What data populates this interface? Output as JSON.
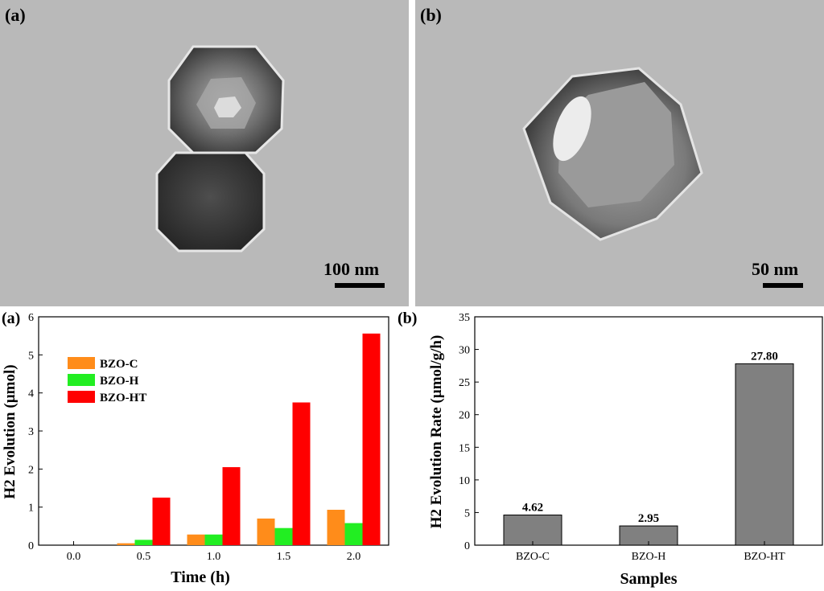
{
  "tem_images": [
    {
      "panel_label": "(a)",
      "scale_label": "100 nm"
    },
    {
      "panel_label": "(b)",
      "scale_label": "50 nm"
    }
  ],
  "colors": {
    "bzo_c": "#ff8c1a",
    "bzo_h": "#22ee22",
    "bzo_ht": "#ff0000",
    "rate_bar": "#808080",
    "tem_background": "#b8b8b8"
  },
  "chart_data": [
    {
      "type": "bar",
      "panel_label": "(a)",
      "xlabel": "Time (h)",
      "ylabel": "H2 Evolution (µmol)",
      "categories": [
        "0.0",
        "0.5",
        "1.0",
        "1.5",
        "2.0"
      ],
      "yticks": [
        "0",
        "1",
        "2",
        "3",
        "4",
        "5",
        "6"
      ],
      "ylim": [
        0,
        6
      ],
      "legend_position": "upper-left",
      "series": [
        {
          "name": "BZO-C",
          "values": [
            0,
            0.05,
            0.28,
            0.7,
            0.93
          ]
        },
        {
          "name": "BZO-H",
          "values": [
            0,
            0.14,
            0.28,
            0.45,
            0.58
          ]
        },
        {
          "name": "BZO-HT",
          "values": [
            0,
            1.25,
            2.05,
            3.75,
            5.56
          ]
        }
      ]
    },
    {
      "type": "bar",
      "panel_label": "(b)",
      "xlabel": "Samples",
      "ylabel": "H2 Evolution Rate (µmol/g/h)",
      "categories": [
        "BZO-C",
        "BZO-H",
        "BZO-HT"
      ],
      "values": [
        4.62,
        2.95,
        27.8
      ],
      "data_labels": [
        "4.62",
        "2.95",
        "27.80"
      ],
      "yticks": [
        "0",
        "5",
        "10",
        "15",
        "20",
        "25",
        "30",
        "35"
      ],
      "ylim": [
        0,
        35
      ]
    }
  ]
}
